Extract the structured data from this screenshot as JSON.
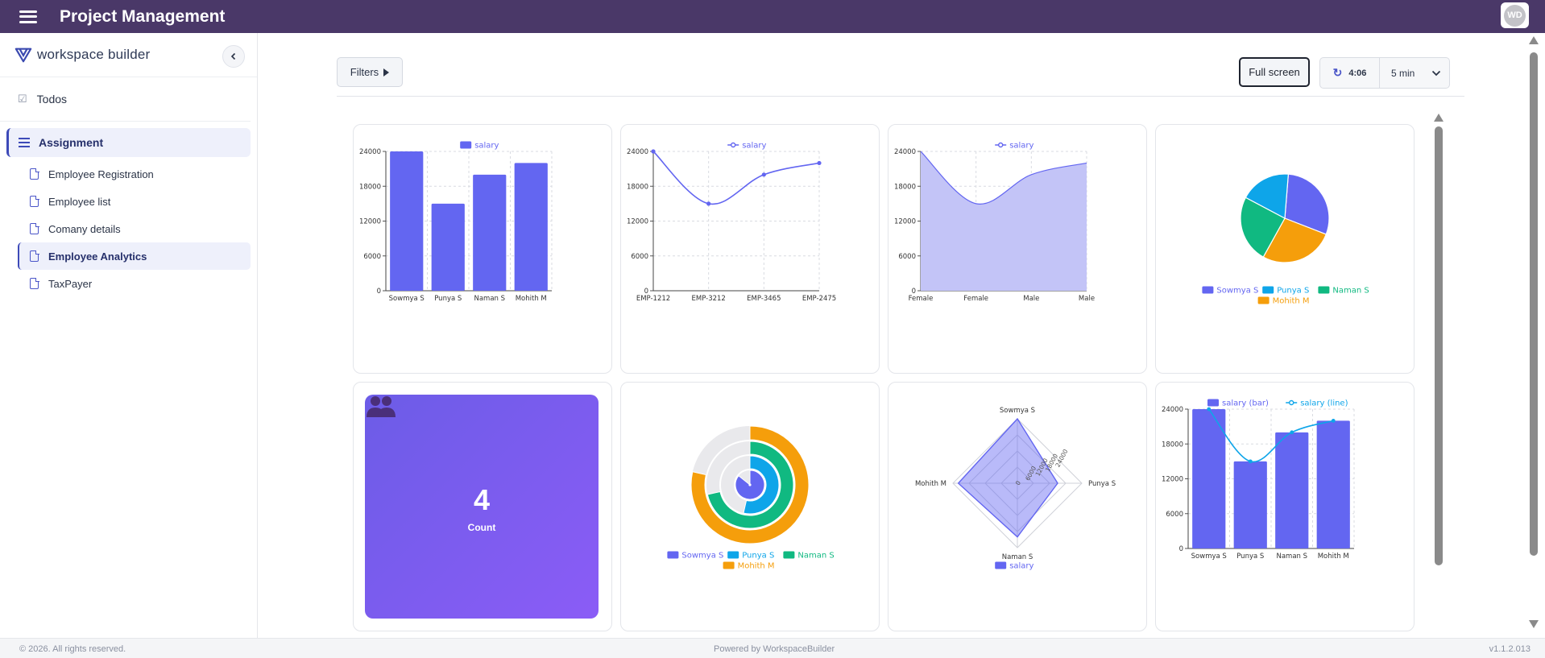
{
  "header": {
    "title": "Project Management",
    "avatar_initials": "WD"
  },
  "sidebar": {
    "brand": "workspace builder",
    "todos_label": "Todos",
    "group_label": "Assignment",
    "items": [
      {
        "label": "Employee Registration",
        "active": false
      },
      {
        "label": "Employee list",
        "active": false
      },
      {
        "label": "Comany details",
        "active": false
      },
      {
        "label": "Employee Analytics",
        "active": true
      },
      {
        "label": "TaxPayer",
        "active": false
      }
    ]
  },
  "toolbar": {
    "filters_label": "Filters",
    "fullscreen_label": "Full screen",
    "refresh_timer": "4:06",
    "interval": "5 min"
  },
  "colors": {
    "primary": "#6366f1",
    "sky": "#0ea5e9",
    "green": "#10b981",
    "orange": "#f59e0b",
    "header": "#4a3868"
  },
  "count_tile": {
    "value": "4",
    "label": "Count",
    "icon": "users-icon"
  },
  "footer": {
    "copyright": "© 2026. All rights reserved.",
    "powered": "Powered by WorkspaceBuilder",
    "version": "v1.1.2.013"
  },
  "chart_data": [
    {
      "type": "bar",
      "legend": [
        "salary"
      ],
      "categories": [
        "Sowmya S",
        "Punya S",
        "Naman S",
        "Mohith M"
      ],
      "values": [
        24000,
        15000,
        20000,
        22000
      ],
      "yticks": [
        "0",
        "6000",
        "12000",
        "18000",
        "24000"
      ],
      "ylim": [
        0,
        24000
      ],
      "grid": true
    },
    {
      "type": "line",
      "legend": [
        "salary"
      ],
      "categories": [
        "EMP-1212",
        "EMP-3212",
        "EMP-3465",
        "EMP-2475"
      ],
      "values": [
        24000,
        15000,
        20000,
        22000
      ],
      "yticks": [
        "0",
        "6000",
        "12000",
        "18000",
        "24000"
      ],
      "ylim": [
        0,
        24000
      ],
      "grid": true
    },
    {
      "type": "area",
      "legend": [
        "salary"
      ],
      "categories": [
        "Female",
        "Female",
        "Male",
        "Male"
      ],
      "values": [
        24000,
        15000,
        20000,
        22000
      ],
      "yticks": [
        "0",
        "6000",
        "12000",
        "18000",
        "24000"
      ],
      "ylim": [
        0,
        24000
      ],
      "grid": true
    },
    {
      "type": "pie",
      "legend": [
        "Sowmya S",
        "Punya S",
        "Naman S",
        "Mohith M"
      ],
      "values": [
        24000,
        15000,
        20000,
        22000
      ],
      "colors": [
        "#6366f1",
        "#0ea5e9",
        "#10b981",
        "#f59e0b"
      ]
    },
    {
      "type": "polar-bar",
      "legend": [
        "Sowmya S",
        "Punya S",
        "Naman S",
        "Mohith M"
      ],
      "values": [
        24000,
        15000,
        20000,
        22000
      ],
      "colors": [
        "#6366f1",
        "#0ea5e9",
        "#10b981",
        "#f59e0b"
      ]
    },
    {
      "type": "radar",
      "legend": [
        "salary"
      ],
      "indicators": [
        "Sowmya S",
        "Punya S",
        "Naman S",
        "Mohith M"
      ],
      "values": [
        24000,
        15000,
        20000,
        22000
      ],
      "max": 24000,
      "ring_labels": [
        "0",
        "6000",
        "12000",
        "18000",
        "24000"
      ]
    },
    {
      "type": "bar-line",
      "legend": [
        "salary (bar)",
        "salary (line)"
      ],
      "categories": [
        "Sowmya S",
        "Punya S",
        "Naman S",
        "Mohith M"
      ],
      "values": [
        24000,
        15000,
        20000,
        22000
      ],
      "yticks": [
        "0",
        "6000",
        "12000",
        "18000",
        "24000"
      ],
      "ylim": [
        0,
        24000
      ],
      "grid": true
    }
  ]
}
